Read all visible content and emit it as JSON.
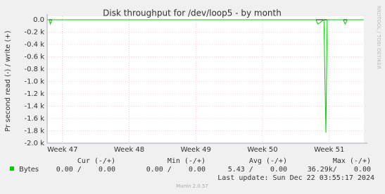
{
  "chart_data": {
    "type": "line",
    "title": "Disk throughput for /dev/loop5 - by month",
    "ylabel": "Pr second read (-) / write (+)",
    "side_label": "RRDTOOL / TOBI OETIKER",
    "footer": "Munin 2.0.57",
    "xlim": [
      46.77,
      51.52
    ],
    "xticks": [
      {
        "value": 47,
        "label": "Week 47"
      },
      {
        "value": 48,
        "label": "Week 48"
      },
      {
        "value": 49,
        "label": "Week 49"
      },
      {
        "value": 50,
        "label": "Week 50"
      },
      {
        "value": 51,
        "label": "Week 51"
      }
    ],
    "ylim": [
      -2000,
      0
    ],
    "yticks": [
      {
        "value": 0,
        "label": "0.0"
      },
      {
        "value": -200,
        "label": "-0.2 k"
      },
      {
        "value": -400,
        "label": "-0.4 k"
      },
      {
        "value": -600,
        "label": "-0.6 k"
      },
      {
        "value": -800,
        "label": "-0.8 k"
      },
      {
        "value": -1000,
        "label": "-1.0 k"
      },
      {
        "value": -1200,
        "label": "-1.2 k"
      },
      {
        "value": -1400,
        "label": "-1.4 k"
      },
      {
        "value": -1600,
        "label": "-1.6 k"
      },
      {
        "value": -1800,
        "label": "-1.8 k"
      },
      {
        "value": -2000,
        "label": "-2.0 k"
      }
    ],
    "grid": true,
    "series": [
      {
        "name": "Bytes",
        "color": "#00cc00",
        "x": [
          46.77,
          46.8,
          46.82,
          46.84,
          50.77,
          50.8,
          50.83,
          50.92,
          50.95,
          50.97,
          51.21,
          51.24,
          51.27,
          51.52
        ],
        "values": [
          0,
          0,
          -70,
          0,
          0,
          0,
          -70,
          0,
          -1830,
          0,
          0,
          -70,
          0,
          0
        ]
      }
    ],
    "legend_headers": [
      "Cur (-/+)",
      "Min (-/+)",
      "Avg (-/+)",
      "Max (-/+)"
    ],
    "legend_values": [
      "0.00 /    0.00",
      "0.00 /    0.00",
      "5.43 /    0.00",
      "36.29k/    0.00"
    ],
    "last_update": "Last update: Sun Dec 22 03:55:17 2024"
  }
}
